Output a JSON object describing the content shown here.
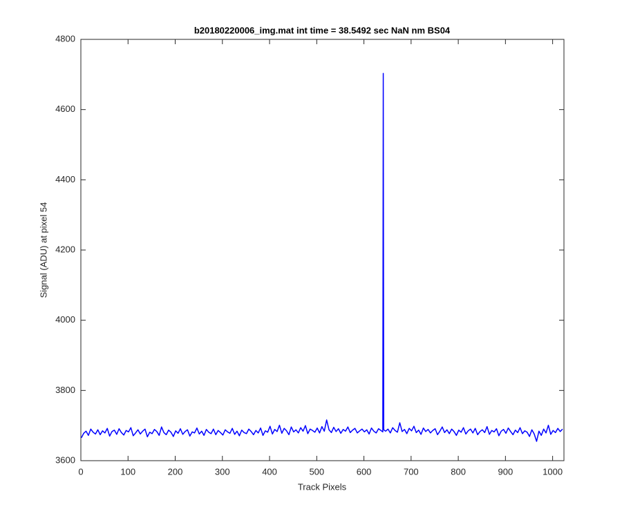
{
  "chart_data": {
    "type": "line",
    "title": "b20180220006_img.mat int time = 38.5492 sec  NaN nm BS04",
    "x_label": "Track Pixels",
    "y_label": "Signal (ADU) at pixel 54",
    "xlim": [
      0,
      1024
    ],
    "ylim": [
      3600,
      4800
    ],
    "xticks": [
      0,
      100,
      200,
      300,
      400,
      500,
      600,
      700,
      800,
      900,
      1000
    ],
    "yticks": [
      3600,
      3800,
      4000,
      4200,
      4400,
      4600,
      4800
    ],
    "grid": false,
    "x": [
      1,
      6,
      11,
      16,
      21,
      26,
      31,
      36,
      41,
      46,
      51,
      56,
      61,
      66,
      71,
      76,
      81,
      86,
      91,
      96,
      101,
      106,
      111,
      116,
      121,
      126,
      131,
      136,
      141,
      146,
      151,
      156,
      161,
      166,
      171,
      176,
      181,
      186,
      191,
      196,
      201,
      206,
      211,
      216,
      221,
      226,
      231,
      236,
      241,
      246,
      251,
      256,
      261,
      266,
      271,
      276,
      281,
      286,
      291,
      296,
      301,
      306,
      311,
      316,
      321,
      326,
      331,
      336,
      341,
      346,
      351,
      356,
      361,
      366,
      371,
      376,
      381,
      386,
      391,
      396,
      401,
      406,
      411,
      416,
      421,
      426,
      431,
      436,
      441,
      446,
      451,
      456,
      461,
      466,
      471,
      476,
      481,
      486,
      491,
      496,
      501,
      506,
      511,
      516,
      521,
      526,
      531,
      536,
      541,
      546,
      551,
      556,
      561,
      566,
      571,
      576,
      581,
      586,
      591,
      596,
      601,
      606,
      611,
      616,
      621,
      626,
      631,
      636,
      640,
      641,
      642,
      646,
      651,
      656,
      661,
      666,
      671,
      676,
      681,
      686,
      691,
      696,
      701,
      706,
      711,
      716,
      721,
      726,
      731,
      736,
      741,
      746,
      751,
      756,
      761,
      766,
      771,
      776,
      781,
      786,
      791,
      796,
      801,
      806,
      811,
      816,
      821,
      826,
      831,
      836,
      841,
      846,
      851,
      856,
      861,
      866,
      871,
      876,
      881,
      886,
      891,
      896,
      901,
      906,
      911,
      916,
      921,
      926,
      931,
      936,
      941,
      946,
      951,
      956,
      961,
      966,
      971,
      976,
      981,
      986,
      991,
      996,
      1001,
      1006,
      1011,
      1016,
      1021
    ],
    "series": [
      {
        "name": "signal",
        "color": "#0000ff",
        "values": [
          3665,
          3678,
          3684,
          3672,
          3690,
          3681,
          3676,
          3688,
          3674,
          3685,
          3679,
          3692,
          3670,
          3683,
          3687,
          3675,
          3691,
          3680,
          3673,
          3686,
          3682,
          3694,
          3671,
          3679,
          3688,
          3676,
          3684,
          3690,
          3668,
          3681,
          3677,
          3689,
          3683,
          3672,
          3696,
          3680,
          3674,
          3687,
          3681,
          3669,
          3685,
          3678,
          3691,
          3675,
          3683,
          3688,
          3670,
          3682,
          3679,
          3693,
          3676,
          3684,
          3672,
          3689,
          3681,
          3677,
          3690,
          3674,
          3686,
          3680,
          3673,
          3688,
          3682,
          3678,
          3692,
          3675,
          3684,
          3671,
          3687,
          3680,
          3677,
          3690,
          3683,
          3674,
          3686,
          3679,
          3693,
          3672,
          3685,
          3681,
          3698,
          3676,
          3689,
          3683,
          3701,
          3678,
          3692,
          3685,
          3674,
          3696,
          3682,
          3688,
          3679,
          3694,
          3684,
          3700,
          3677,
          3690,
          3686,
          3681,
          3693,
          3679,
          3697,
          3684,
          3716,
          3688,
          3680,
          3695,
          3683,
          3691,
          3678,
          3689,
          3684,
          3696,
          3680,
          3687,
          3692,
          3679,
          3685,
          3690,
          3682,
          3688,
          3676,
          3693,
          3684,
          3679,
          3691,
          3686,
          3682,
          4703,
          3688,
          3684,
          3690,
          3679,
          3694,
          3686,
          3681,
          3708,
          3683,
          3689,
          3677,
          3692,
          3685,
          3698,
          3680,
          3687,
          3675,
          3693,
          3683,
          3689,
          3679,
          3686,
          3691,
          3674,
          3684,
          3696,
          3680,
          3688,
          3677,
          3690,
          3683,
          3672,
          3687,
          3681,
          3694,
          3676,
          3685,
          3690,
          3679,
          3692,
          3674,
          3683,
          3688,
          3680,
          3697,
          3675,
          3686,
          3682,
          3691,
          3671,
          3684,
          3689,
          3678,
          3693,
          3683,
          3674,
          3687,
          3680,
          3694,
          3677,
          3685,
          3681,
          3669,
          3688,
          3676,
          3655,
          3684,
          3672,
          3690,
          3679,
          3701,
          3675,
          3686,
          3680,
          3692,
          3683,
          3690
        ]
      }
    ]
  }
}
